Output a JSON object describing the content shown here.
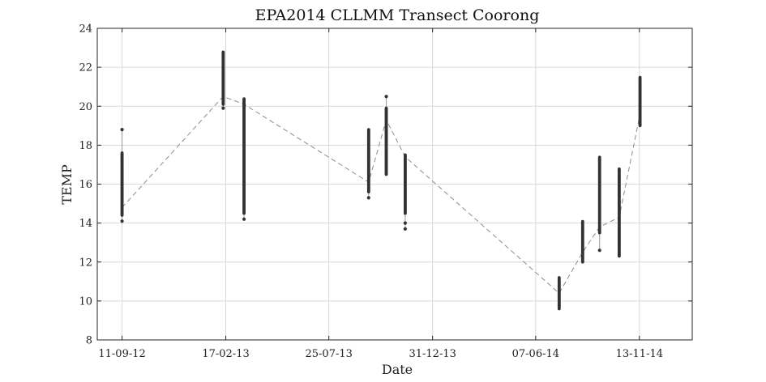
{
  "chart_data": {
    "type": "scatter",
    "title": "EPA2014 CLLMM Transect Coorong",
    "xlabel": "Date",
    "ylabel": "TEMP",
    "x_ticks": [
      "11-09-12",
      "17-02-13",
      "25-07-13",
      "31-12-13",
      "07-06-14",
      "13-11-14"
    ],
    "x_tick_days": [
      0,
      159,
      317,
      476,
      634,
      793
    ],
    "xlim_days": [
      -38,
      874
    ],
    "ylim": [
      8,
      24
    ],
    "yticks": [
      8,
      10,
      12,
      14,
      16,
      18,
      20,
      22,
      24
    ],
    "grid": true,
    "colors": {
      "points": "#333333",
      "mean_line": "#8c8c8c",
      "range_line": "#999999"
    },
    "surveys": [
      {
        "day": 0,
        "min": 14.1,
        "max": 18.8,
        "dense_min": 14.4,
        "dense_max": 17.6,
        "outliers": [
          14.1,
          18.8
        ],
        "mean": 14.8
      },
      {
        "day": 155,
        "min": 19.9,
        "max": 22.8,
        "dense_min": 20.1,
        "dense_max": 22.8,
        "outliers": [
          19.9
        ],
        "mean": 20.5
      },
      {
        "day": 187,
        "min": 14.2,
        "max": 20.4,
        "dense_min": 14.5,
        "dense_max": 20.4,
        "outliers": [
          14.2
        ],
        "mean": 20.1
      },
      {
        "day": 378,
        "min": 15.3,
        "max": 18.8,
        "dense_min": 15.6,
        "dense_max": 18.8,
        "outliers": [
          15.3
        ],
        "mean": 16.1
      },
      {
        "day": 405,
        "min": 16.5,
        "max": 20.5,
        "dense_min": 16.5,
        "dense_max": 19.9,
        "outliers": [
          20.5
        ],
        "mean": 19.3
      },
      {
        "day": 434,
        "min": 13.7,
        "max": 17.5,
        "dense_min": 14.5,
        "dense_max": 17.5,
        "outliers": [
          13.7,
          14.0
        ],
        "mean": 17.4
      },
      {
        "day": 670,
        "min": 9.6,
        "max": 11.2,
        "dense_min": 9.6,
        "dense_max": 11.2,
        "outliers": [],
        "mean": 10.4
      },
      {
        "day": 706,
        "min": 12.0,
        "max": 14.1,
        "dense_min": 12.0,
        "dense_max": 14.1,
        "outliers": [],
        "mean": 12.5
      },
      {
        "day": 732,
        "min": 12.6,
        "max": 17.4,
        "dense_min": 13.5,
        "dense_max": 17.4,
        "outliers": [
          12.6
        ],
        "mean": 13.8
      },
      {
        "day": 762,
        "min": 12.3,
        "max": 16.8,
        "dense_min": 12.3,
        "dense_max": 16.8,
        "outliers": [],
        "mean": 14.3
      },
      {
        "day": 794,
        "min": 19.0,
        "max": 21.5,
        "dense_min": 19.0,
        "dense_max": 21.5,
        "outliers": [],
        "mean": 19.6
      }
    ]
  }
}
